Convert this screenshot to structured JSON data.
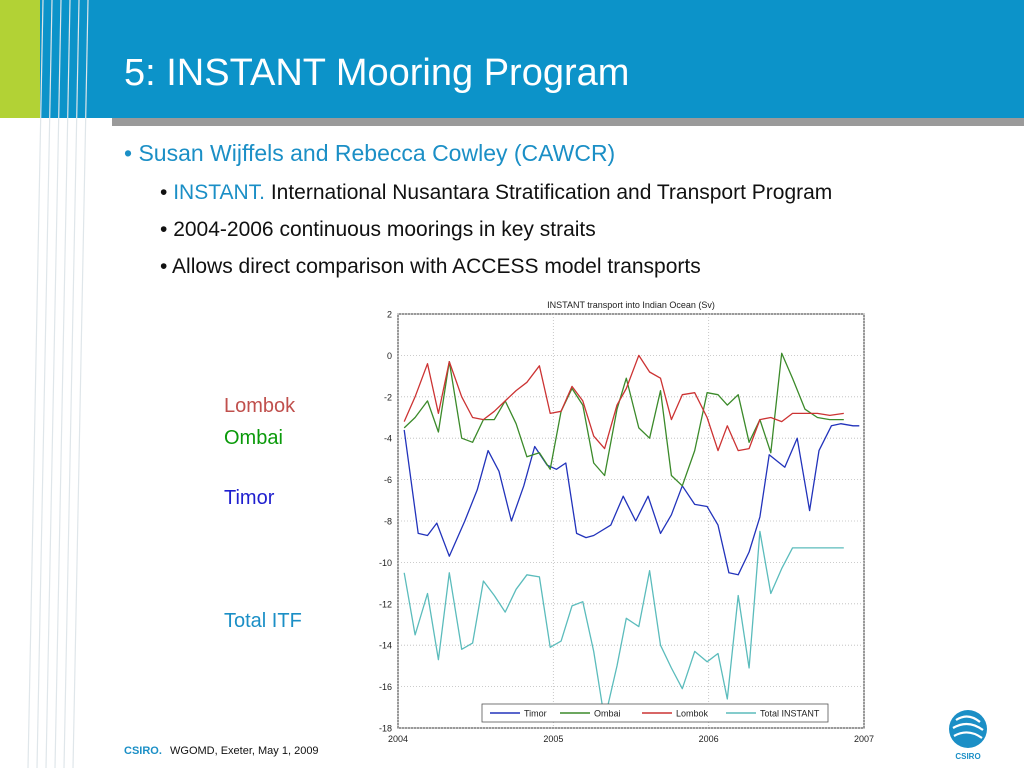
{
  "slide": {
    "title": "5: INSTANT Mooring Program",
    "bullets": [
      {
        "text": "Susan Wijffels and Rebecca Cowley (CAWCR)"
      },
      {
        "accent": "INSTANT.",
        "text": "International Nusantara Stratification and Transport Program"
      },
      {
        "text": "2004-2006 continuous moorings in key straits"
      },
      {
        "text": "Allows direct comparison with ACCESS model transports"
      }
    ],
    "side_labels": [
      {
        "text": "Lombok",
        "color": "#c0504d"
      },
      {
        "text": "Ombai",
        "color": "#0a9a0a"
      },
      {
        "text": "Timor",
        "color": "#1f1fcf"
      },
      {
        "text": "Total ITF",
        "color": "#1b8fc6"
      }
    ],
    "footer": {
      "brand": "CSIRO.",
      "text": "WGOMD, Exeter, May 1, 2009"
    },
    "logo_text": "CSIRO",
    "colors": {
      "header": "#0c93c9",
      "header_accent": "#b2d235",
      "accent_text": "#1b8fc6"
    }
  },
  "chart_data": {
    "type": "line",
    "title": "INSTANT transport into Indian Ocean (Sv)",
    "xlabel": "",
    "ylabel": "",
    "xlim": [
      2004,
      2007
    ],
    "ylim": [
      -18,
      2
    ],
    "x_ticks": [
      2004,
      2005,
      2006,
      2007
    ],
    "y_ticks": [
      2,
      0,
      -2,
      -4,
      -6,
      -8,
      -10,
      -12,
      -14,
      -16,
      -18
    ],
    "grid": true,
    "legend_position": "bottom",
    "series": [
      {
        "name": "Timor",
        "color": "#2233bb",
        "x": [
          2004.04,
          2004.13,
          2004.19,
          2004.25,
          2004.33,
          2004.43,
          2004.51,
          2004.58,
          2004.65,
          2004.73,
          2004.81,
          2004.88,
          2004.96,
          2005.02,
          2005.08,
          2005.15,
          2005.21,
          2005.26,
          2005.37,
          2005.45,
          2005.53,
          2005.61,
          2005.69,
          2005.76,
          2005.83,
          2005.91,
          2005.99,
          2006.06,
          2006.13,
          2006.19,
          2006.26,
          2006.33,
          2006.39,
          2006.49,
          2006.57,
          2006.65,
          2006.71,
          2006.79,
          2006.85,
          2006.93,
          2006.97
        ],
        "y": [
          -3.6,
          -8.6,
          -8.7,
          -8.1,
          -9.7,
          -8.0,
          -6.5,
          -4.6,
          -5.6,
          -8.0,
          -6.3,
          -4.4,
          -5.3,
          -5.5,
          -5.2,
          -8.6,
          -8.8,
          -8.7,
          -8.2,
          -6.8,
          -8.0,
          -6.8,
          -8.6,
          -7.7,
          -6.3,
          -7.2,
          -7.3,
          -8.2,
          -10.5,
          -10.6,
          -9.5,
          -7.8,
          -4.8,
          -5.4,
          -4.0,
          -7.5,
          -4.6,
          -3.4,
          -3.3,
          -3.4,
          -3.4
        ]
      },
      {
        "name": "Ombai",
        "color": "#3b8a2a",
        "x": [
          2004.04,
          2004.11,
          2004.19,
          2004.26,
          2004.33,
          2004.41,
          2004.48,
          2004.55,
          2004.62,
          2004.69,
          2004.76,
          2004.83,
          2004.91,
          2004.98,
          2005.05,
          2005.12,
          2005.19,
          2005.26,
          2005.33,
          2005.41,
          2005.47,
          2005.55,
          2005.62,
          2005.69,
          2005.76,
          2005.83,
          2005.91,
          2005.99,
          2006.06,
          2006.12,
          2006.19,
          2006.26,
          2006.33,
          2006.4,
          2006.47,
          2006.54,
          2006.62,
          2006.7,
          2006.78,
          2006.87
        ],
        "y": [
          -3.5,
          -3.0,
          -2.2,
          -3.7,
          -0.3,
          -4.0,
          -4.2,
          -3.1,
          -3.1,
          -2.2,
          -3.3,
          -4.9,
          -4.7,
          -5.5,
          -2.7,
          -1.6,
          -2.4,
          -5.2,
          -5.8,
          -2.6,
          -1.1,
          -3.5,
          -4.0,
          -1.7,
          -5.8,
          -6.3,
          -4.6,
          -1.8,
          -1.9,
          -2.4,
          -1.9,
          -4.2,
          -3.1,
          -4.7,
          0.1,
          -1.1,
          -2.6,
          -3.0,
          -3.1,
          -3.1
        ]
      },
      {
        "name": "Lombok",
        "color": "#cc3333",
        "x": [
          2004.04,
          2004.11,
          2004.19,
          2004.26,
          2004.33,
          2004.41,
          2004.48,
          2004.55,
          2004.62,
          2004.69,
          2004.76,
          2004.83,
          2004.91,
          2004.98,
          2005.05,
          2005.12,
          2005.19,
          2005.26,
          2005.33,
          2005.41,
          2005.47,
          2005.55,
          2005.62,
          2005.69,
          2005.76,
          2005.83,
          2005.91,
          2005.99,
          2006.06,
          2006.12,
          2006.19,
          2006.26,
          2006.33,
          2006.4,
          2006.47,
          2006.54,
          2006.62,
          2006.7,
          2006.78,
          2006.87
        ],
        "y": [
          -3.2,
          -2.0,
          -0.4,
          -2.8,
          -0.3,
          -2.0,
          -3.0,
          -3.1,
          -2.7,
          -2.2,
          -1.7,
          -1.3,
          -0.5,
          -2.8,
          -2.7,
          -1.5,
          -2.2,
          -3.9,
          -4.5,
          -2.4,
          -1.6,
          0.0,
          -0.8,
          -1.1,
          -3.1,
          -1.9,
          -1.8,
          -3.0,
          -4.6,
          -3.4,
          -4.6,
          -4.5,
          -3.1,
          -3.0,
          -3.2,
          -2.8,
          -2.8,
          -2.8,
          -2.9,
          -2.8
        ]
      },
      {
        "name": "Total INSTANT",
        "color": "#5bbcbc",
        "x": [
          2004.04,
          2004.11,
          2004.19,
          2004.26,
          2004.33,
          2004.41,
          2004.48,
          2004.55,
          2004.62,
          2004.69,
          2004.76,
          2004.83,
          2004.91,
          2004.98,
          2005.05,
          2005.12,
          2005.19,
          2005.26,
          2005.33,
          2005.41,
          2005.47,
          2005.55,
          2005.62,
          2005.69,
          2005.76,
          2005.83,
          2005.91,
          2005.99,
          2006.06,
          2006.12,
          2006.19,
          2006.26,
          2006.33,
          2006.4,
          2006.47,
          2006.54,
          2006.62,
          2006.7,
          2006.78,
          2006.87
        ],
        "y": [
          -10.5,
          -13.5,
          -11.5,
          -14.7,
          -10.5,
          -14.2,
          -13.9,
          -10.9,
          -11.6,
          -12.4,
          -11.3,
          -10.6,
          -10.7,
          -14.1,
          -13.8,
          -12.1,
          -11.9,
          -14.3,
          -17.6,
          -15.0,
          -12.7,
          -13.1,
          -10.4,
          -14.0,
          -15.1,
          -16.1,
          -14.3,
          -14.8,
          -14.4,
          -16.6,
          -11.6,
          -15.1,
          -8.5,
          -11.5,
          -10.3,
          -9.3,
          -9.3,
          -9.3,
          -9.3,
          -9.3
        ]
      }
    ]
  }
}
